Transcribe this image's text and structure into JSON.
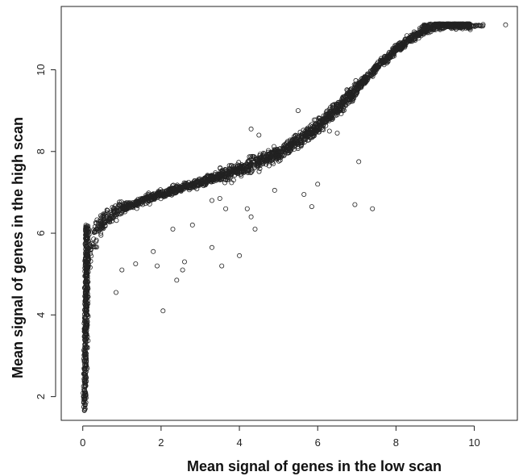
{
  "chart_data": {
    "type": "scatter",
    "title": "",
    "xlabel": "Mean signal of genes in the low scan",
    "ylabel": "Mean signal of genes in the high scan",
    "xlim": [
      -0.55,
      11.1
    ],
    "ylim": [
      1.42,
      11.55
    ],
    "x_ticks": [
      0,
      2,
      4,
      6,
      8,
      10
    ],
    "x_tick_labels": [
      "0",
      "2",
      "4",
      "6",
      "8",
      "10"
    ],
    "y_ticks": [
      2,
      4,
      6,
      8,
      10
    ],
    "y_tick_labels": [
      "2",
      "4",
      "6",
      "8",
      "10"
    ],
    "grid": false,
    "marker": "open-circle",
    "trend": {
      "x": [
        0,
        0.03,
        0.06,
        0.1,
        0.15,
        0.2,
        0.3,
        0.4,
        0.6,
        0.8,
        1.0,
        1.5,
        2.0,
        2.5,
        3.0,
        3.5,
        4.0,
        4.5,
        5.0,
        5.5,
        6.0,
        6.5,
        7.0,
        7.5,
        8.0,
        8.5,
        8.8,
        9.0,
        9.3,
        9.6,
        10.0,
        10.3
      ],
      "y": [
        1.7,
        2.8,
        4.0,
        4.8,
        5.3,
        5.6,
        5.95,
        6.15,
        6.35,
        6.5,
        6.6,
        6.8,
        6.95,
        7.1,
        7.25,
        7.4,
        7.55,
        7.75,
        7.95,
        8.25,
        8.6,
        9.05,
        9.55,
        10.05,
        10.5,
        10.85,
        11.0,
        11.07,
        11.1,
        11.1,
        11.1,
        11.1
      ]
    },
    "outliers": [
      {
        "x": 10.8,
        "y": 11.1
      },
      {
        "x": 7.05,
        "y": 7.75
      },
      {
        "x": 7.4,
        "y": 6.6
      },
      {
        "x": 6.95,
        "y": 6.7
      },
      {
        "x": 6.0,
        "y": 7.2
      },
      {
        "x": 5.85,
        "y": 6.65
      },
      {
        "x": 5.65,
        "y": 6.95
      },
      {
        "x": 4.9,
        "y": 7.05
      },
      {
        "x": 4.4,
        "y": 6.1
      },
      {
        "x": 4.3,
        "y": 6.4
      },
      {
        "x": 4.2,
        "y": 6.6
      },
      {
        "x": 4.0,
        "y": 5.45
      },
      {
        "x": 3.65,
        "y": 6.6
      },
      {
        "x": 3.5,
        "y": 6.85
      },
      {
        "x": 3.3,
        "y": 6.8
      },
      {
        "x": 3.3,
        "y": 5.65
      },
      {
        "x": 3.55,
        "y": 5.2
      },
      {
        "x": 2.6,
        "y": 5.3
      },
      {
        "x": 2.55,
        "y": 5.1
      },
      {
        "x": 2.4,
        "y": 4.85
      },
      {
        "x": 2.05,
        "y": 4.1
      },
      {
        "x": 1.8,
        "y": 5.55
      },
      {
        "x": 1.9,
        "y": 5.2
      },
      {
        "x": 1.35,
        "y": 5.25
      },
      {
        "x": 1.0,
        "y": 5.1
      },
      {
        "x": 0.85,
        "y": 4.55
      },
      {
        "x": 2.3,
        "y": 6.1
      },
      {
        "x": 2.8,
        "y": 6.2
      },
      {
        "x": 6.3,
        "y": 8.5
      },
      {
        "x": 6.5,
        "y": 8.45
      },
      {
        "x": 5.5,
        "y": 9.0
      },
      {
        "x": 4.3,
        "y": 8.55
      },
      {
        "x": 4.5,
        "y": 8.4
      }
    ]
  }
}
